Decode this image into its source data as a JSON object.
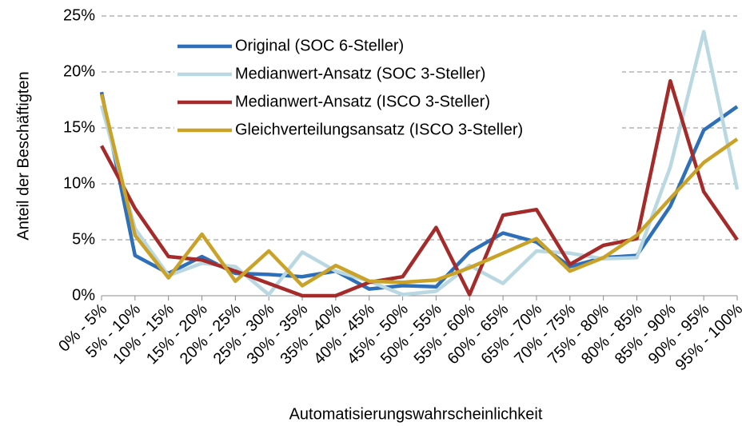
{
  "chart_data": {
    "type": "line",
    "xlabel": "Automatisierungswahrscheinlichkeit",
    "ylabel": "Anteil der Beschäftigten",
    "categories": [
      "0% - 5%",
      "5% - 10%",
      "10% - 15%",
      "15% - 20%",
      "20% - 25%",
      "25% - 30%",
      "30% - 35%",
      "35% - 40%",
      "40% - 45%",
      "45% - 50%",
      "50% - 55%",
      "55% - 60%",
      "60% - 65%",
      "65% - 70%",
      "70% - 75%",
      "75% - 80%",
      "80% - 85%",
      "85% - 90%",
      "90% - 95%",
      "95% - 100%"
    ],
    "ylim": [
      0,
      25
    ],
    "yticks": [
      {
        "value": 0,
        "label": "0%"
      },
      {
        "value": 5,
        "label": "5%"
      },
      {
        "value": 10,
        "label": "10%"
      },
      {
        "value": 15,
        "label": "15%"
      },
      {
        "value": 20,
        "label": "20%"
      },
      {
        "value": 25,
        "label": "25%"
      }
    ],
    "grid": true,
    "legend": "upper left",
    "series": [
      {
        "name": "Original (SOC 6-Steller)",
        "color": "#2e6fba",
        "values": [
          18.2,
          3.6,
          2.0,
          3.5,
          2.0,
          1.9,
          1.7,
          2.2,
          0.6,
          0.9,
          0.8,
          3.9,
          5.6,
          4.8,
          2.6,
          3.4,
          3.6,
          8.0,
          14.8,
          16.9
        ]
      },
      {
        "name": "Medianwert-Ansatz (SOC 3-Steller)",
        "color": "#b9d8e1",
        "values": [
          17.0,
          6.0,
          1.8,
          2.9,
          2.6,
          0.1,
          3.9,
          2.2,
          1.3,
          0.1,
          0.4,
          2.7,
          1.1,
          4.0,
          3.8,
          3.3,
          3.4,
          11.5,
          23.6,
          9.5
        ]
      },
      {
        "name": "Medianwert-Ansatz (ISCO 3-Steller)",
        "color": "#a52a2a",
        "values": [
          13.4,
          7.8,
          3.5,
          3.2,
          2.2,
          1.1,
          0.0,
          0.0,
          1.2,
          1.7,
          6.1,
          0.1,
          7.2,
          7.7,
          2.8,
          4.5,
          5.1,
          19.2,
          9.3,
          5.0
        ]
      },
      {
        "name": "Gleichverteilungsansatz (ISCO 3-Steller)",
        "color": "#c9a227",
        "values": [
          18.0,
          5.4,
          1.6,
          5.5,
          1.3,
          4.0,
          0.9,
          2.7,
          1.3,
          1.2,
          1.4,
          2.5,
          3.8,
          5.1,
          2.2,
          3.4,
          5.4,
          8.7,
          11.9,
          14.0
        ]
      }
    ]
  }
}
